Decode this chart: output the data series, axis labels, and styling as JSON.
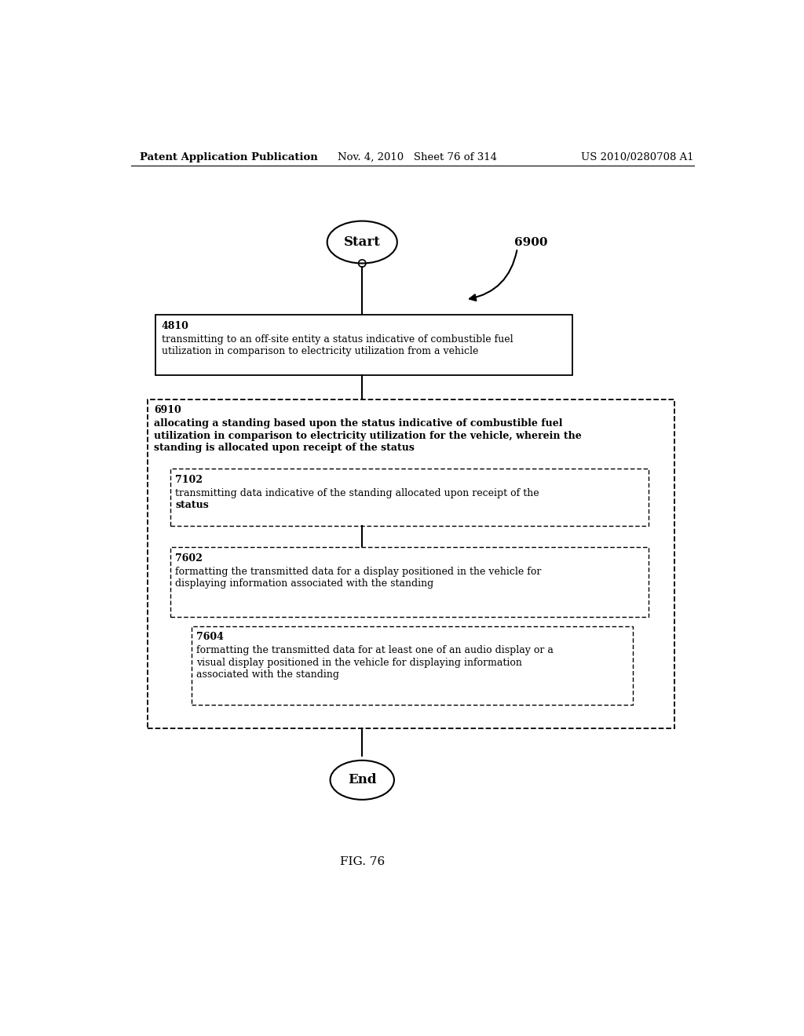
{
  "header_left": "Patent Application Publication",
  "header_mid": "Nov. 4, 2010   Sheet 76 of 314",
  "header_right": "US 2010/0280708 A1",
  "fig_label": "FIG. 76",
  "label_6900": "6900",
  "box_4810_id": "4810",
  "box_4810_line1": "transmitting to an off-site entity a status indicative of combustible fuel",
  "box_4810_line2": "utilization in comparison to electricity utilization from a vehicle",
  "box_6910_id": "6910",
  "box_6910_line1": "allocating a standing based upon the status indicative of combustible fuel",
  "box_6910_line2": "utilization in comparison to electricity utilization for the vehicle, wherein the",
  "box_6910_line3": "standing is allocated upon receipt of the status",
  "box_7102_id": "7102",
  "box_7102_line1": "transmitting data indicative of the standing allocated upon receipt of the",
  "box_7102_line2": "status",
  "box_7602_id": "7602",
  "box_7602_line1": "formatting the transmitted data for a display positioned in the vehicle for",
  "box_7602_line2": "displaying information associated with the standing",
  "box_7604_id": "7604",
  "box_7604_line1": "formatting the transmitted data for at least one of an audio display or a",
  "box_7604_line2": "visual display positioned in the vehicle for displaying information",
  "box_7604_line3": "associated with the standing",
  "bg_color": "#ffffff",
  "text_color": "#000000",
  "line_color": "#000000",
  "font_size_header": 9.5,
  "font_size_id": 9,
  "font_size_body": 9,
  "font_size_terminal": 12
}
